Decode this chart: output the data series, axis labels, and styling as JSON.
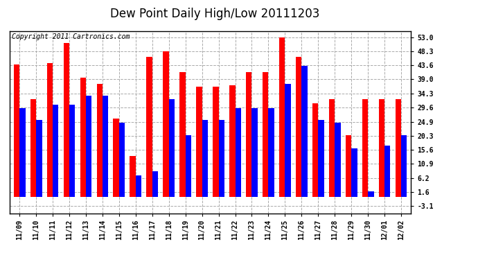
{
  "title": "Dew Point Daily High/Low 20111203",
  "copyright": "Copyright 2011 Cartronics.com",
  "dates": [
    "11/09",
    "11/10",
    "11/11",
    "11/12",
    "11/13",
    "11/14",
    "11/15",
    "11/16",
    "11/17",
    "11/18",
    "11/19",
    "11/20",
    "11/21",
    "11/22",
    "11/23",
    "11/24",
    "11/25",
    "11/26",
    "11/27",
    "11/28",
    "11/29",
    "11/30",
    "12/01",
    "12/02"
  ],
  "highs": [
    44.0,
    32.5,
    44.5,
    51.0,
    39.5,
    37.5,
    26.0,
    13.5,
    46.5,
    48.3,
    41.5,
    36.5,
    36.5,
    37.0,
    41.5,
    41.5,
    53.0,
    46.5,
    31.0,
    32.5,
    20.5,
    32.5,
    32.5,
    32.5
  ],
  "lows": [
    29.5,
    25.5,
    30.5,
    30.5,
    33.5,
    33.5,
    24.5,
    7.0,
    8.5,
    32.5,
    20.5,
    25.5,
    25.5,
    29.5,
    29.5,
    29.5,
    37.5,
    43.5,
    25.5,
    24.5,
    16.0,
    1.8,
    17.0,
    20.5
  ],
  "high_color": "#ff0000",
  "low_color": "#0000ff",
  "bg_color": "#ffffff",
  "grid_color": "#aaaaaa",
  "yticks": [
    -3.1,
    1.6,
    6.2,
    10.9,
    15.6,
    20.3,
    24.9,
    29.6,
    34.3,
    39.0,
    43.6,
    48.3,
    53.0
  ],
  "ylim_min": -5.5,
  "ylim_max": 55.0,
  "title_fontsize": 12,
  "copyright_fontsize": 7,
  "tick_fontsize": 7,
  "bar_width": 0.35
}
